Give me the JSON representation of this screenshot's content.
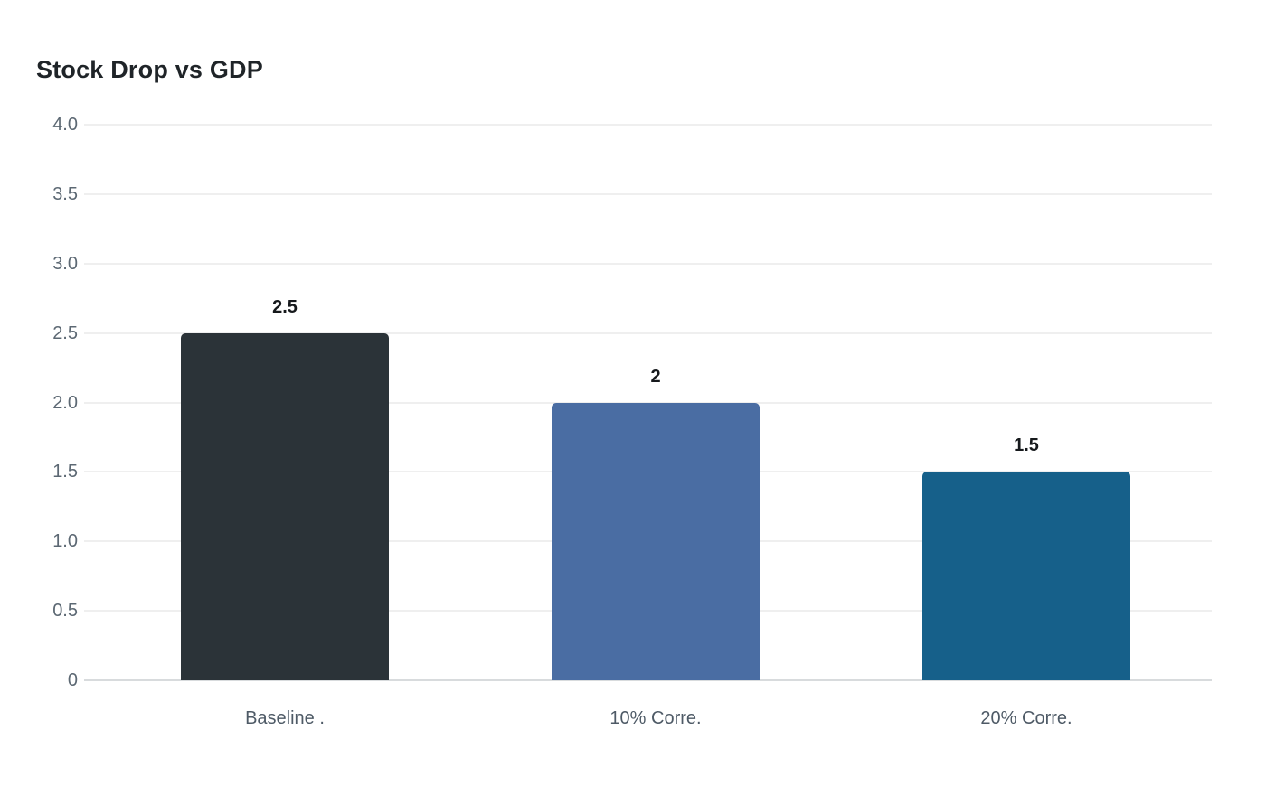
{
  "chart_data": {
    "type": "bar",
    "title": "Stock Drop vs GDP",
    "categories": [
      "Baseline .",
      "10% Corre.",
      "20% Corre."
    ],
    "values": [
      2.5,
      2,
      1.5
    ],
    "value_labels": [
      "2.5",
      "2",
      "1.5"
    ],
    "bar_colors": [
      "#2b3338",
      "#4a6da3",
      "#16608a"
    ],
    "xlabel": "",
    "ylabel": "",
    "ylim": [
      0,
      4
    ],
    "ytick_step": 0.5,
    "ytick_labels": [
      "0",
      "0.5",
      "1.0",
      "1.5",
      "2.0",
      "2.5",
      "3.0",
      "3.5",
      "4.0"
    ],
    "grid": "horizontal",
    "legend": "none"
  },
  "colors": {
    "background": "#ffffff",
    "title_text": "#1f2428",
    "grid_line": "#efefef",
    "baseline_line": "#d8dbdd",
    "axis_dashed_line": "#d9d9d9",
    "y_tick_text": "#5c6873",
    "x_tick_text": "#4e5a66",
    "value_label_text": "#16191c"
  }
}
